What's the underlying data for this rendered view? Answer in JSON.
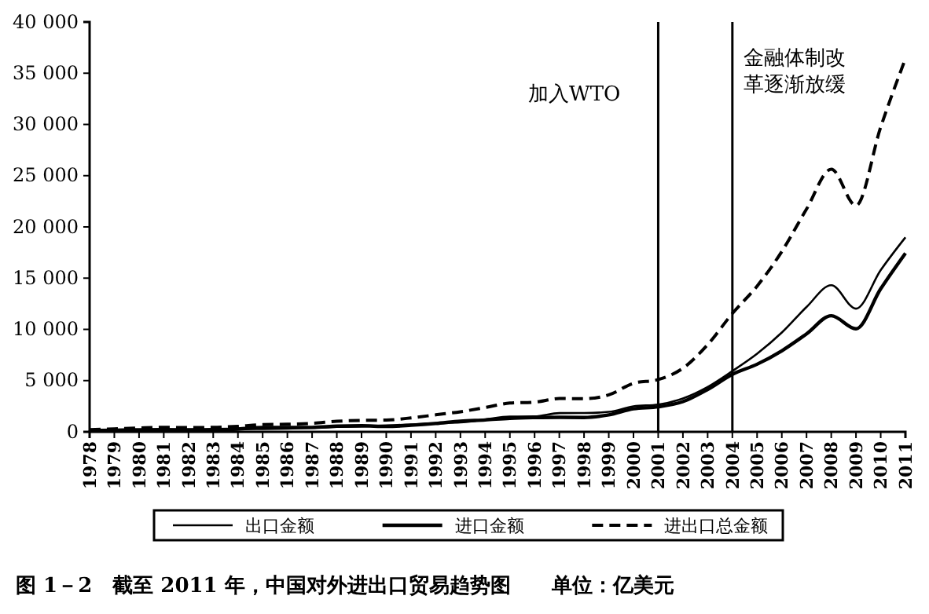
{
  "chart_data": {
    "type": "line",
    "title": "图 1－2　截至 2011 年，中国对外进出口贸易趋势图　　单位：亿美元",
    "x": [
      1978,
      1979,
      1980,
      1981,
      1982,
      1983,
      1984,
      1985,
      1986,
      1987,
      1988,
      1989,
      1990,
      1991,
      1992,
      1993,
      1994,
      1995,
      1996,
      1997,
      1998,
      1999,
      2000,
      2001,
      2002,
      2003,
      2004,
      2005,
      2006,
      2007,
      2008,
      2009,
      2010,
      2011
    ],
    "series": [
      {
        "name": "出口金额",
        "color": "#000000",
        "line_style": "solid",
        "values": [
          100,
          140,
          180,
          220,
          220,
          220,
          260,
          270,
          310,
          390,
          480,
          530,
          620,
          720,
          850,
          920,
          1210,
          1490,
          1510,
          1830,
          1840,
          1950,
          2490,
          2660,
          3260,
          4380,
          5930,
          7620,
          9690,
          12180,
          14310,
          12020,
          15780,
          18980
        ]
      },
      {
        "name": "进口金额",
        "color": "#000000",
        "line_style": "solid",
        "values": [
          110,
          160,
          200,
          220,
          190,
          210,
          270,
          420,
          430,
          430,
          550,
          590,
          530,
          640,
          810,
          1040,
          1160,
          1320,
          1390,
          1420,
          1400,
          1660,
          2250,
          2440,
          2950,
          4130,
          5610,
          6600,
          7910,
          9560,
          11330,
          10060,
          13960,
          17430
        ]
      },
      {
        "name": "进出口总金额",
        "color": "#000000",
        "line_style": "dashed",
        "values": [
          210,
          290,
          380,
          440,
          420,
          440,
          540,
          700,
          740,
          830,
          1030,
          1120,
          1150,
          1360,
          1660,
          1960,
          2370,
          2810,
          2900,
          3250,
          3240,
          3610,
          4740,
          5100,
          6210,
          8510,
          11550,
          14220,
          17600,
          21740,
          25630,
          22080,
          29740,
          36420
        ]
      }
    ],
    "xlim": [
      1978,
      2011
    ],
    "xticks": [
      1978,
      1979,
      1980,
      1981,
      1982,
      1983,
      1984,
      1985,
      1986,
      1987,
      1988,
      1989,
      1990,
      1991,
      1992,
      1993,
      1994,
      1995,
      1996,
      1997,
      1998,
      1999,
      2000,
      2001,
      2002,
      2003,
      2004,
      2005,
      2006,
      2007,
      2008,
      2009,
      2010,
      2011
    ],
    "ylim": [
      0,
      40000
    ],
    "yticks": [
      0,
      {
        "value": 5000,
        "label": "5 000"
      },
      {
        "value": 10000,
        "label": "10 000"
      },
      {
        "value": 15000,
        "label": "15 000"
      },
      {
        "value": 20000,
        "label": "20 000"
      },
      {
        "value": 25000,
        "label": "25 000"
      },
      {
        "value": 30000,
        "label": "30 000"
      },
      {
        "value": 35000,
        "label": "35 000"
      },
      {
        "value": 40000,
        "label": "40 000"
      }
    ],
    "ref_lines": [
      {
        "axis": "x",
        "value": 2001,
        "label": "加入WTO",
        "color": "#000000"
      },
      {
        "axis": "x",
        "value": 2004,
        "label": "金融体制改革逐渐放缓",
        "color": "#000000"
      }
    ],
    "grid": false,
    "legend": "bottom",
    "marker": "none"
  }
}
